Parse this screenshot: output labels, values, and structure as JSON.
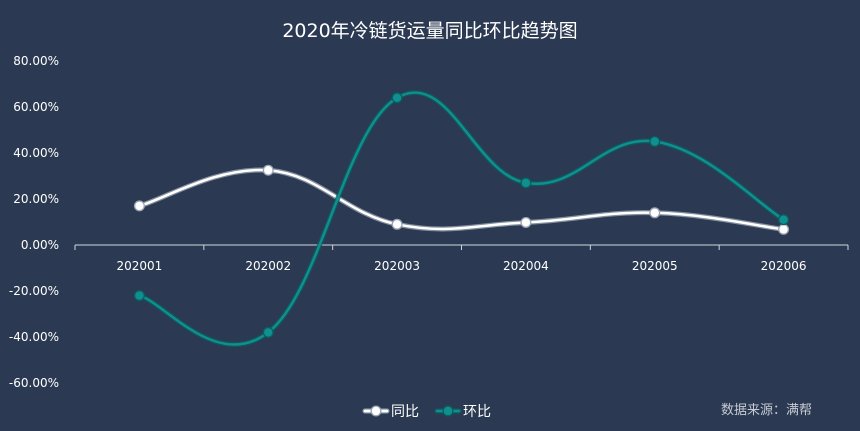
{
  "chart_data": {
    "type": "line",
    "title": "2020年冷链货运量同比环比趋势图",
    "categories": [
      "202001",
      "202002",
      "202003",
      "202004",
      "202005",
      "202006"
    ],
    "series": [
      {
        "name": "同比",
        "values": [
          17.0,
          32.5,
          9.0,
          9.8,
          14.0,
          6.8
        ],
        "color": "#ffffff",
        "shadow": "#9aa4b2"
      },
      {
        "name": "环比",
        "values": [
          -22.0,
          -38.0,
          64.0,
          27.0,
          45.0,
          11.0
        ],
        "color": "#0f8f8f",
        "shadow": "#0b5e5e"
      }
    ],
    "ylim": [
      -60,
      80
    ],
    "yticks": [
      -60,
      -40,
      -20,
      0,
      20,
      40,
      60,
      80
    ],
    "yticks_labels": [
      "-60.00%",
      "-40.00%",
      "-20.00%",
      "0.00%",
      "20.00%",
      "40.00%",
      "60.00%",
      "80.00%"
    ],
    "xlabel": "",
    "ylabel": "",
    "grid": false,
    "legend_position": "bottom-center",
    "smooth": true
  },
  "source": "数据来源：满帮",
  "colors": {
    "background": "#2b3a52",
    "axis": "#cfd5dd",
    "text": "#ffffff"
  }
}
